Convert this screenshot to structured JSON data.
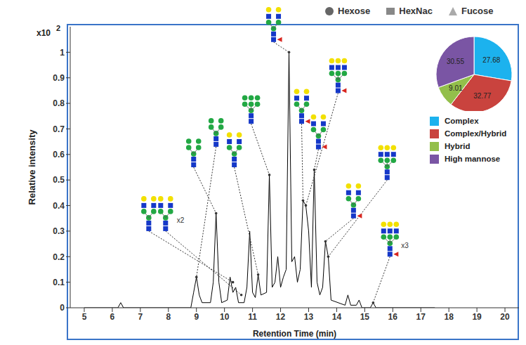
{
  "chart_data": [
    {
      "type": "line",
      "x_label": "Retention Time (min)",
      "y_label": "Relative intensity",
      "annotations": [
        {
          "text": "x10"
        },
        {
          "text": "2"
        }
      ],
      "symbol_legend": [
        {
          "name": "Hexose",
          "marker": "circle"
        },
        {
          "name": "HexNac",
          "marker": "square"
        },
        {
          "name": "Fucose",
          "marker": "triangle"
        }
      ],
      "color": "#000000",
      "xlim": [
        4.5,
        20.5
      ],
      "xticks": [
        5,
        6,
        7,
        8,
        9,
        10,
        11,
        12,
        13,
        14,
        15,
        16,
        17,
        18,
        19,
        20
      ],
      "ylim": [
        0,
        1.1
      ],
      "yticks": [
        0,
        0.1,
        0.2,
        0.3,
        0.4,
        0.5,
        0.6,
        0.7,
        0.8,
        0.9,
        1
      ],
      "x": [
        5,
        6.2,
        6.3,
        6.4,
        7.0,
        8.8,
        8.9,
        9.0,
        9.1,
        9.2,
        9.5,
        9.6,
        9.7,
        9.8,
        9.9,
        10.1,
        10.2,
        10.3,
        10.4,
        10.5,
        10.7,
        10.8,
        10.9,
        11.0,
        11.1,
        11.2,
        11.3,
        11.5,
        11.6,
        11.7,
        11.8,
        11.9,
        12.0,
        12.1,
        12.2,
        12.3,
        12.4,
        12.5,
        12.6,
        12.7,
        12.8,
        12.9,
        13.0,
        13.1,
        13.2,
        13.3,
        13.4,
        13.5,
        13.6,
        13.7,
        13.8,
        14.3,
        14.4,
        14.5,
        14.7,
        14.8,
        14.9,
        15.2,
        15.3,
        15.4,
        16,
        17.5
      ],
      "values": [
        0,
        0,
        0.02,
        0,
        0,
        0,
        0.06,
        0.12,
        0.05,
        0.02,
        0.02,
        0.1,
        0.37,
        0.1,
        0.02,
        0.03,
        0.12,
        0.06,
        0.08,
        0.02,
        0.02,
        0.08,
        0.3,
        0.06,
        0.04,
        0.13,
        0.05,
        0.06,
        0.52,
        0.08,
        0.1,
        0.2,
        0.08,
        0.12,
        0.15,
        1.0,
        0.18,
        0.2,
        0.1,
        0.15,
        0.42,
        0.4,
        0.3,
        0.08,
        0.54,
        0.1,
        0.05,
        0.08,
        0.26,
        0.2,
        0.03,
        0.01,
        0.05,
        0.01,
        0.01,
        0.03,
        0,
        0,
        0.02,
        0,
        0,
        0
      ],
      "peak_annotations": [
        {
          "x": 10.3,
          "y": 0.1
        },
        {
          "x": 10.6,
          "y": 0.05,
          "text": "x2"
        },
        {
          "x": 9.7,
          "y": 0.37
        },
        {
          "x": 9.0,
          "y": 0.12
        },
        {
          "x": 11.2,
          "y": 0.13
        },
        {
          "x": 11.6,
          "y": 0.52
        },
        {
          "x": 12.3,
          "y": 1.0
        },
        {
          "x": 12.8,
          "y": 0.42
        },
        {
          "x": 13.2,
          "y": 0.54
        },
        {
          "x": 12.9,
          "y": 0.4
        },
        {
          "x": 13.6,
          "y": 0.26
        },
        {
          "x": 13.7,
          "y": 0.2
        },
        {
          "x": 15.3,
          "y": 0.02,
          "text": "x3"
        }
      ]
    },
    {
      "type": "pie",
      "categories": [
        "Complex",
        "Complex/Hybrid",
        "Hybrid",
        "High mannose"
      ],
      "values": [
        27.68,
        32.77,
        9.01,
        30.55
      ],
      "colors": [
        "#1cb2ee",
        "#c9433e",
        "#93bf4b",
        "#7a55a4"
      ],
      "data_labels": true
    }
  ]
}
